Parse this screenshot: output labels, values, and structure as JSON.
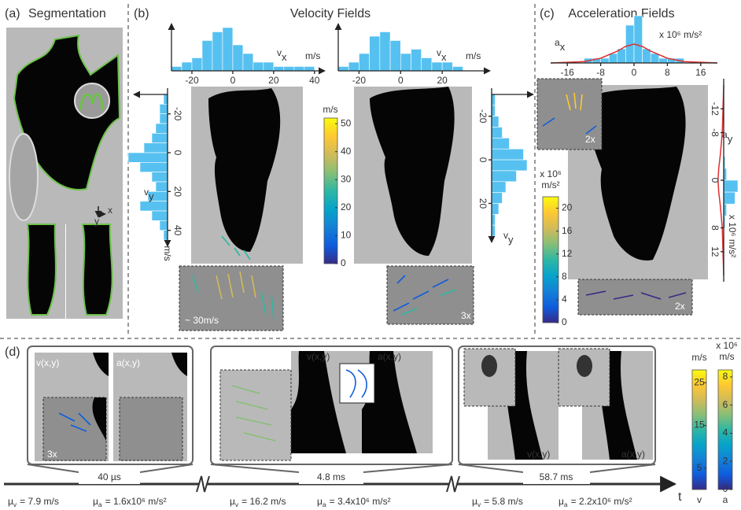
{
  "panels": {
    "a": {
      "label": "(a)",
      "title": "Segmentation",
      "axes": [
        "x",
        "y"
      ]
    },
    "b": {
      "label": "(b)",
      "title": "Velocity Fields",
      "inset_label": "~ 30m/s",
      "inset_zoom": "3x"
    },
    "c": {
      "label": "(c)",
      "title": "Acceleration Fields",
      "inset_zooms": [
        "2x",
        "2x"
      ]
    },
    "d": {
      "label": "(d)",
      "time_axis": "t",
      "snapshots": [
        {
          "time": "40 µs",
          "field_labels": [
            "v(x,y)",
            "a(x,y)"
          ],
          "zoom": "3x",
          "mean_v": {
            "symbol": "μ",
            "sub": "v",
            "text": "= 7.9 m/s"
          },
          "mean_a": {
            "symbol": "μ",
            "sub": "a",
            "text": "= 1.6x10⁶ m/s²"
          }
        },
        {
          "time": "4.8 ms",
          "field_labels": [
            "v(x,y)",
            "a(x,y)"
          ],
          "mean_v": {
            "symbol": "μ",
            "sub": "v",
            "text": "= 16.2 m/s"
          },
          "mean_a": {
            "symbol": "μ",
            "sub": "a",
            "text": "= 3.4x10⁶ m/s²"
          }
        },
        {
          "time": "58.7 ms",
          "field_labels": [
            "v(x,y)",
            "a(x,y)"
          ],
          "mean_v": {
            "symbol": "μ",
            "sub": "v",
            "text": "= 5.8 m/s"
          },
          "mean_a": {
            "symbol": "μ",
            "sub": "a",
            "text": "= 2.2x10⁶ m/s²"
          }
        }
      ]
    }
  },
  "chart_data": [
    {
      "type": "histogram",
      "orientation": "horizontal",
      "label": {
        "symbol": "v",
        "sub": "x"
      },
      "unit": "m/s",
      "color": "#56c1f0",
      "bins": [
        -30,
        -25,
        -20,
        -15,
        -10,
        -5,
        0,
        5,
        10,
        15,
        20,
        25,
        30,
        35,
        40
      ],
      "values": [
        1,
        2,
        3,
        7,
        9,
        10,
        6,
        4,
        2,
        2,
        1,
        1,
        1,
        1
      ],
      "xlim": [
        -30,
        42
      ],
      "xticks": [
        -20,
        0,
        20,
        40
      ],
      "ylim": [
        0,
        10
      ]
    },
    {
      "type": "histogram",
      "orientation": "horizontal",
      "label": {
        "symbol": "v",
        "sub": "x"
      },
      "unit": "m/s",
      "color": "#56c1f0",
      "bins": [
        -30,
        -25,
        -20,
        -15,
        -10,
        -5,
        0,
        5,
        10,
        15,
        20,
        25,
        30
      ],
      "values": [
        1,
        2,
        4,
        8,
        9,
        7,
        4,
        5,
        3,
        2,
        2,
        1
      ],
      "xlim": [
        -30,
        40
      ],
      "xticks": [
        -20,
        0,
        20
      ],
      "ylim": [
        0,
        10
      ]
    },
    {
      "type": "histogram",
      "orientation": "vertical",
      "label": {
        "symbol": "v",
        "sub": "y"
      },
      "unit": "m/s",
      "color": "#56c1f0",
      "bins": [
        -30,
        -25,
        -20,
        -15,
        -10,
        -5,
        0,
        5,
        10,
        15,
        20,
        25,
        30,
        35,
        40,
        45
      ],
      "values": [
        1,
        2,
        2,
        3,
        4,
        6,
        10,
        7,
        4,
        3,
        5,
        7,
        4,
        2,
        1
      ],
      "xlim": [
        -30,
        45
      ],
      "xticks": [
        -20,
        0,
        20,
        40
      ],
      "ylim": [
        0,
        10
      ]
    },
    {
      "type": "histogram",
      "orientation": "vertical",
      "label": {
        "symbol": "v",
        "sub": "y"
      },
      "color": "#56c1f0",
      "bins": [
        -30,
        -25,
        -20,
        -15,
        -10,
        -5,
        0,
        5,
        10,
        15,
        20,
        25,
        30,
        35
      ],
      "values": [
        1,
        1,
        2,
        3,
        5,
        9,
        10,
        7,
        4,
        3,
        2,
        1,
        1
      ],
      "xlim": [
        -30,
        35
      ],
      "xticks": [
        -20,
        0,
        20
      ],
      "ylim": [
        0,
        10
      ]
    },
    {
      "type": "histogram",
      "orientation": "horizontal",
      "label": {
        "symbol": "a",
        "sub": "x"
      },
      "unit": "x 10⁶ m/s²",
      "color": "#56c1f0",
      "bins": [
        -20,
        -18,
        -16,
        -14,
        -12,
        -10,
        -8,
        -6,
        -4,
        -2,
        0,
        2,
        4,
        6,
        8,
        10,
        12,
        14,
        16,
        18,
        20
      ],
      "values": [
        0,
        0,
        0,
        0,
        1,
        1,
        1,
        2,
        3,
        8,
        10,
        3,
        2,
        1,
        1,
        1,
        0,
        0,
        0,
        0
      ],
      "fit": {
        "color": "#e03030",
        "x": [
          -20,
          -12,
          -8,
          -4,
          -2,
          0,
          2,
          4,
          8,
          12,
          20
        ],
        "values": [
          0,
          0.3,
          1,
          2.5,
          3.5,
          4,
          3.5,
          2.5,
          1,
          0.3,
          0
        ]
      },
      "xlim": [
        -20,
        20
      ],
      "xticks": [
        -16,
        -8,
        0,
        8,
        16
      ],
      "ylim": [
        0,
        10
      ]
    },
    {
      "type": "histogram",
      "orientation": "vertical",
      "label": {
        "symbol": "a",
        "sub": "y"
      },
      "unit": "x 10⁶ m/s²",
      "color": "#56c1f0",
      "bins": [
        -16,
        -14,
        -12,
        -10,
        -8,
        -6,
        -4,
        -2,
        0,
        2,
        4,
        6,
        8,
        10,
        12,
        14,
        16
      ],
      "values": [
        0,
        0,
        0,
        0,
        0,
        0,
        1,
        2,
        10,
        8,
        2,
        1,
        0,
        0,
        0,
        0
      ],
      "fit": {
        "color": "#e03030",
        "x": [
          -16,
          -8,
          -4,
          -2,
          0,
          2,
          4,
          8,
          16
        ],
        "values": [
          0,
          1,
          2.5,
          3.5,
          4,
          3.5,
          2.5,
          1,
          0
        ]
      },
      "xlim": [
        -16,
        16
      ],
      "xticks": [
        -12,
        -8,
        0,
        8,
        12
      ],
      "ylim": [
        0,
        10
      ]
    },
    {
      "type": "colorbar",
      "title": [
        "m/s"
      ],
      "ylim": [
        0,
        52
      ],
      "yticks": [
        0,
        10,
        20,
        30,
        40,
        50
      ],
      "colors": [
        "#352a87",
        "#0f5cdd",
        "#1481d6",
        "#06a4ca",
        "#2eb7a4",
        "#87bf77",
        "#d1bb59",
        "#fec832",
        "#f9fb0e"
      ]
    },
    {
      "type": "colorbar",
      "title": [
        "x 10⁶",
        "m/s²"
      ],
      "ylim": [
        0,
        22
      ],
      "yticks": [
        0,
        4,
        8,
        12,
        16,
        20
      ],
      "colors": [
        "#352a87",
        "#0f5cdd",
        "#1481d6",
        "#06a4ca",
        "#2eb7a4",
        "#87bf77",
        "#d1bb59",
        "#fec832",
        "#f9fb0e"
      ]
    },
    {
      "type": "colorbar",
      "title": [
        "m/s"
      ],
      "label": "v",
      "ylim": [
        0,
        28
      ],
      "yticks": [
        5,
        15,
        25
      ],
      "colors": [
        "#352a87",
        "#0f5cdd",
        "#1481d6",
        "#06a4ca",
        "#2eb7a4",
        "#87bf77",
        "#d1bb59",
        "#fec832",
        "#f9fb0e"
      ]
    },
    {
      "type": "colorbar",
      "title": [
        "x 10⁶",
        "m/s"
      ],
      "label": "a",
      "ylim": [
        0,
        8.5
      ],
      "yticks": [
        0,
        2,
        4,
        6,
        8
      ],
      "colors": [
        "#352a87",
        "#0f5cdd",
        "#1481d6",
        "#06a4ca",
        "#2eb7a4",
        "#87bf77",
        "#d1bb59",
        "#fec832",
        "#f9fb0e"
      ]
    }
  ]
}
